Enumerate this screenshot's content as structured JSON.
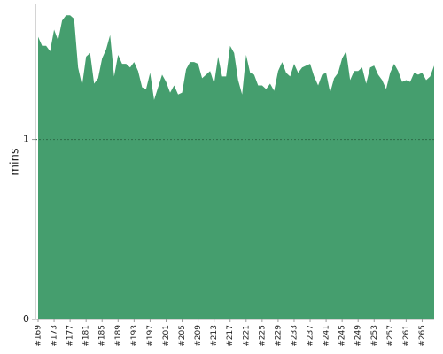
{
  "chart_data": {
    "type": "area",
    "y_label": "mins",
    "color": "#459e6e",
    "categories": [
      "#169",
      null,
      null,
      null,
      "#173",
      null,
      null,
      null,
      "#177",
      null,
      null,
      null,
      "#181",
      null,
      null,
      null,
      "#185",
      null,
      null,
      null,
      "#189",
      null,
      null,
      null,
      "#193",
      null,
      null,
      null,
      "#197",
      null,
      null,
      null,
      "#201",
      null,
      null,
      null,
      "#205",
      null,
      null,
      null,
      "#209",
      null,
      null,
      null,
      "#213",
      null,
      null,
      null,
      "#217",
      null,
      null,
      null,
      "#221",
      null,
      null,
      null,
      "#225",
      null,
      null,
      null,
      "#229",
      null,
      null,
      null,
      "#233",
      null,
      null,
      null,
      "#237",
      null,
      null,
      null,
      "#241",
      null,
      null,
      null,
      "#245",
      null,
      null,
      null,
      "#249",
      null,
      null,
      null,
      "#253",
      null,
      null,
      null,
      "#257",
      null,
      null,
      null,
      "#261",
      null,
      null,
      null,
      "#265",
      null,
      null,
      null
    ],
    "values": [
      1.57,
      1.52,
      1.52,
      1.49,
      1.61,
      1.55,
      1.66,
      1.69,
      1.69,
      1.67,
      1.4,
      1.3,
      1.46,
      1.48,
      1.31,
      1.34,
      1.45,
      1.5,
      1.58,
      1.35,
      1.47,
      1.42,
      1.42,
      1.4,
      1.43,
      1.38,
      1.29,
      1.28,
      1.37,
      1.22,
      1.29,
      1.36,
      1.32,
      1.26,
      1.3,
      1.25,
      1.26,
      1.39,
      1.43,
      1.43,
      1.42,
      1.34,
      1.36,
      1.38,
      1.31,
      1.46,
      1.35,
      1.35,
      1.52,
      1.48,
      1.33,
      1.25,
      1.47,
      1.37,
      1.36,
      1.3,
      1.3,
      1.28,
      1.31,
      1.27,
      1.38,
      1.43,
      1.37,
      1.35,
      1.42,
      1.37,
      1.4,
      1.41,
      1.42,
      1.35,
      1.3,
      1.36,
      1.37,
      1.26,
      1.34,
      1.37,
      1.45,
      1.49,
      1.33,
      1.38,
      1.38,
      1.4,
      1.31,
      1.4,
      1.41,
      1.36,
      1.33,
      1.28,
      1.37,
      1.42,
      1.38,
      1.32,
      1.33,
      1.32,
      1.37,
      1.36,
      1.37,
      1.33,
      1.35,
      1.41
    ],
    "ylim": [
      0,
      1.75
    ],
    "yticks": [
      0,
      1
    ],
    "grid": true
  }
}
